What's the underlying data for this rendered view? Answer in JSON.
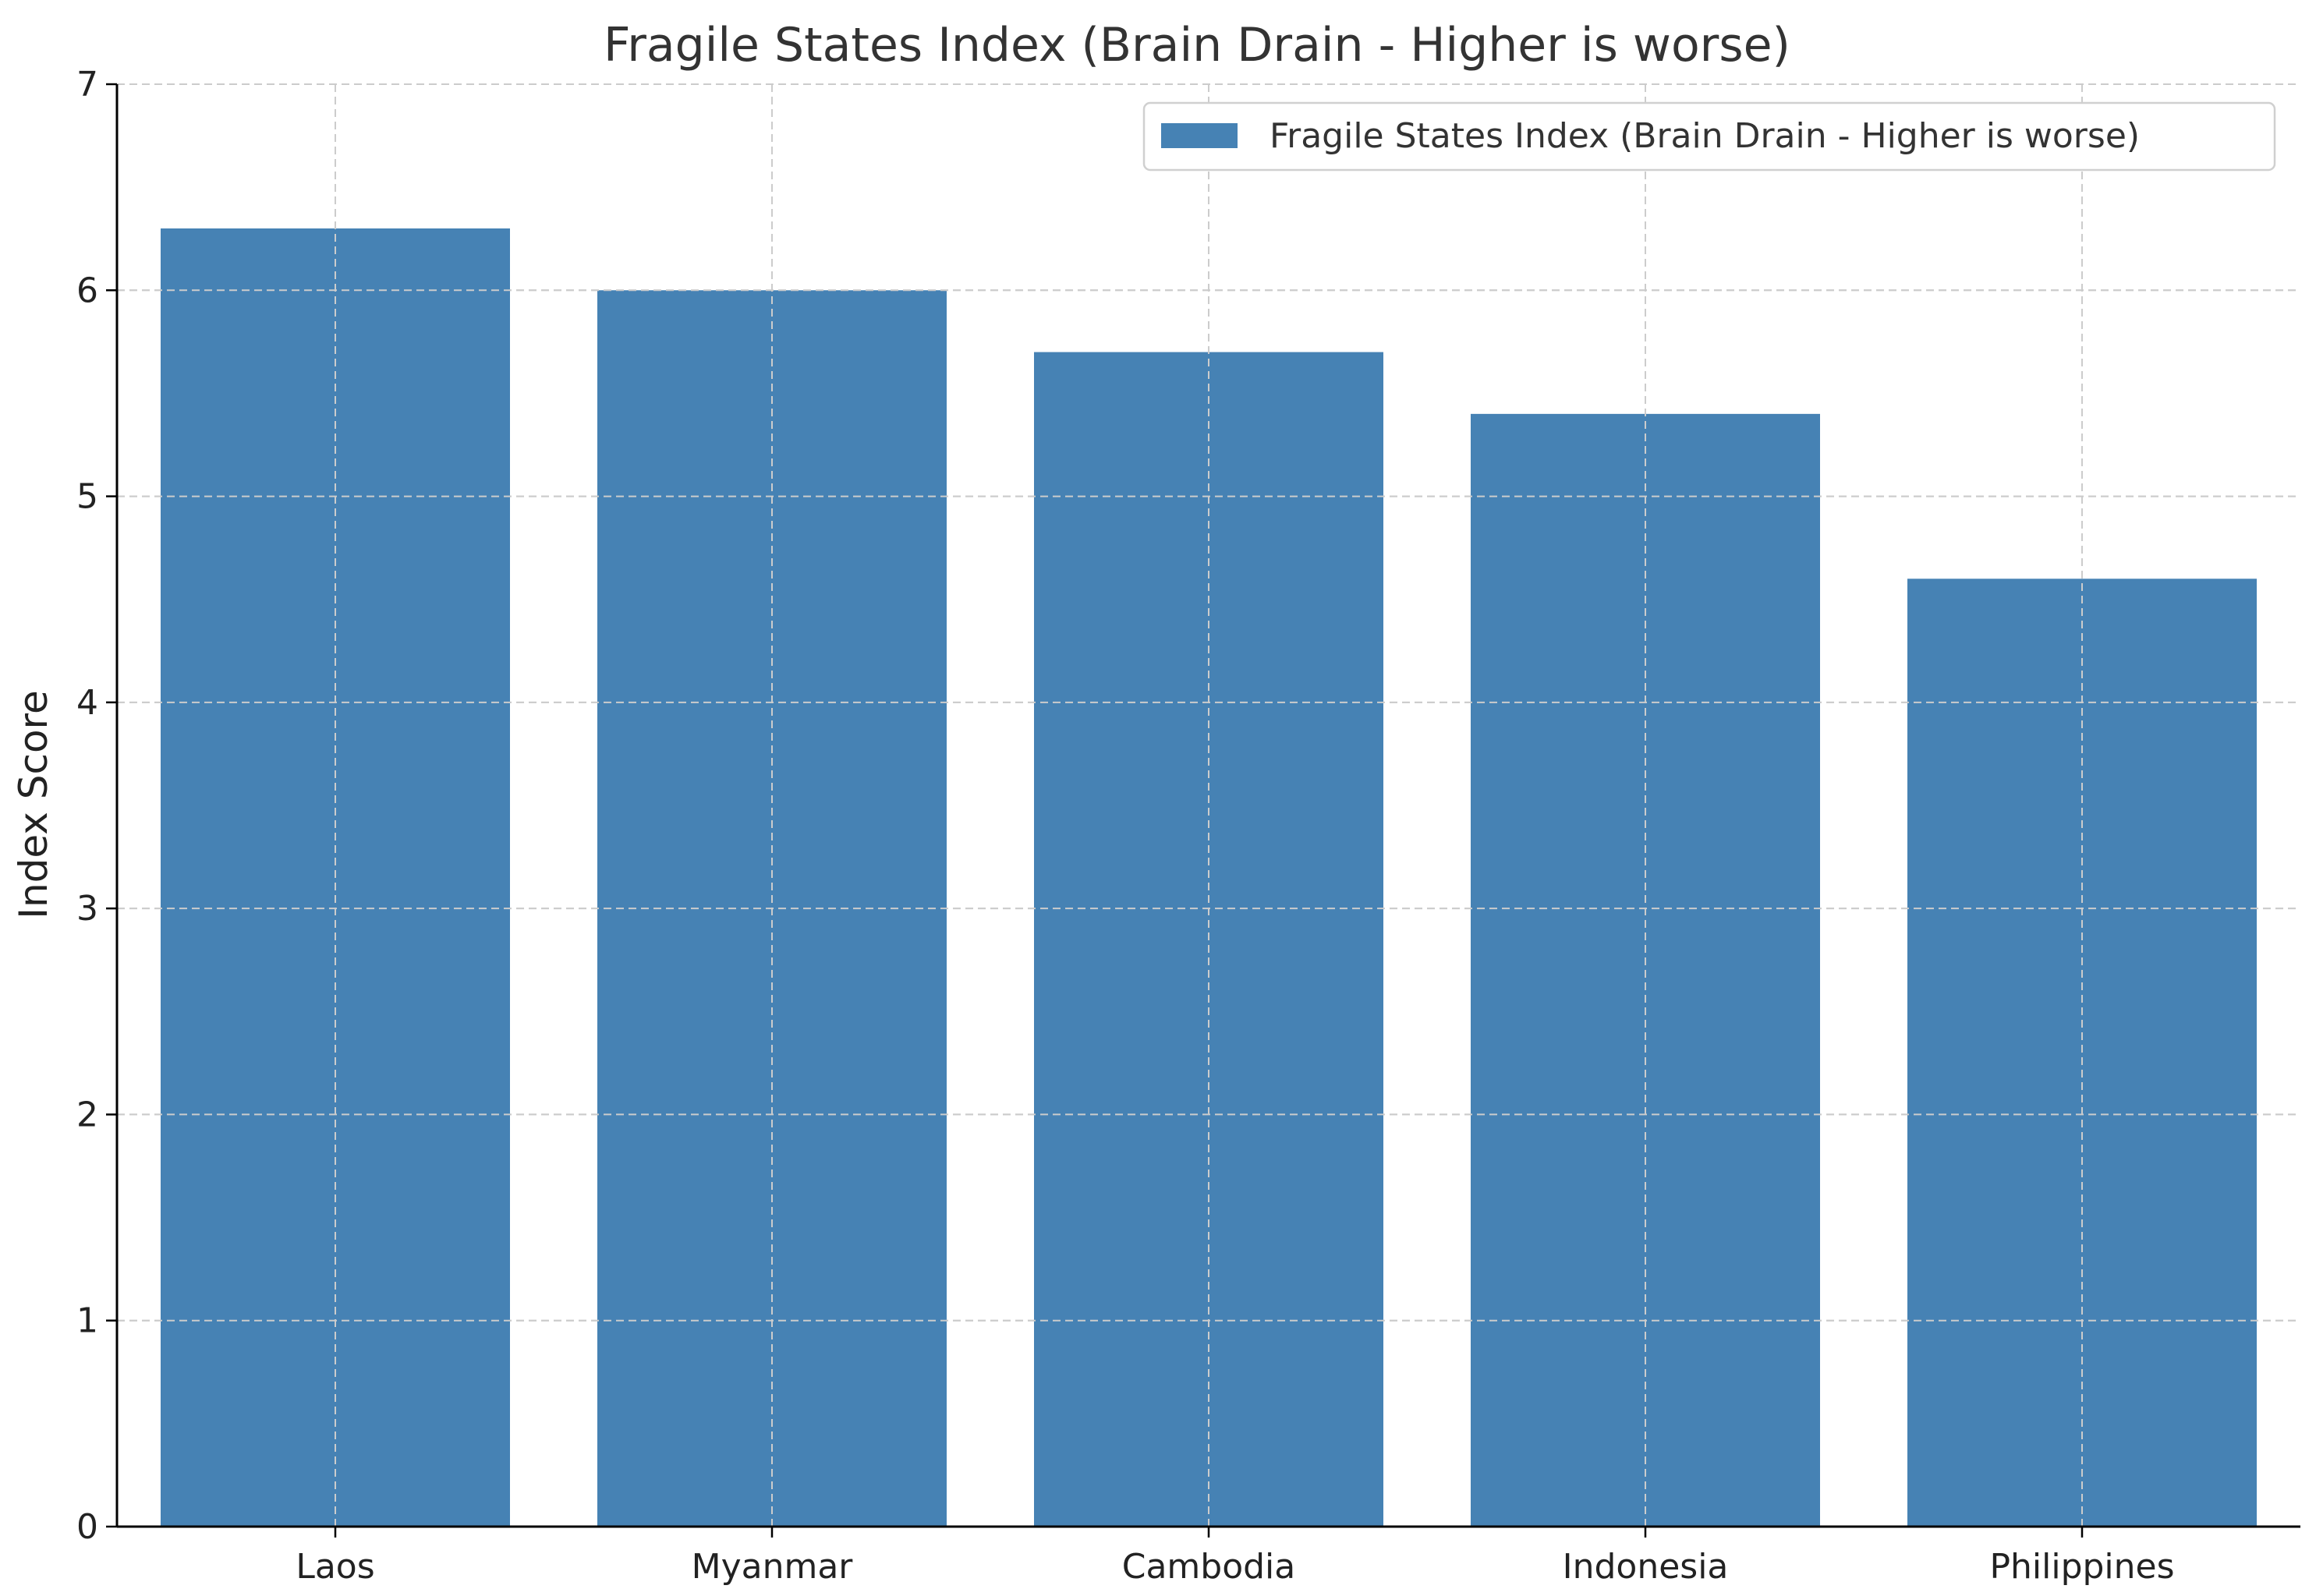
{
  "chart_data": {
    "type": "bar",
    "title": "Fragile States Index (Brain Drain - Higher is worse)",
    "xlabel": "",
    "ylabel": "Index Score",
    "categories": [
      "Laos",
      "Myanmar",
      "Cambodia",
      "Indonesia",
      "Philippines"
    ],
    "series": [
      {
        "name": "Fragile States Index (Brain Drain - Higher is worse)",
        "values": [
          6.3,
          6.0,
          5.7,
          5.4,
          4.6
        ],
        "color": "#4682b4"
      }
    ],
    "ylim": [
      0,
      7
    ],
    "yticks": [
      0,
      1,
      2,
      3,
      4,
      5,
      6,
      7
    ],
    "grid": true,
    "legend_position": "top-right"
  }
}
